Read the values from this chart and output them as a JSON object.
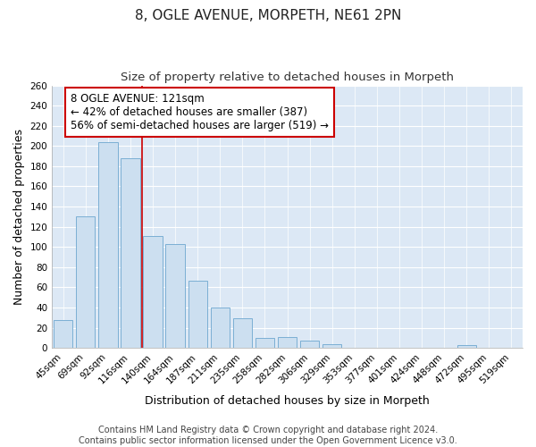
{
  "title": "8, OGLE AVENUE, MORPETH, NE61 2PN",
  "subtitle": "Size of property relative to detached houses in Morpeth",
  "xlabel": "Distribution of detached houses by size in Morpeth",
  "ylabel": "Number of detached properties",
  "bar_labels": [
    "45sqm",
    "69sqm",
    "92sqm",
    "116sqm",
    "140sqm",
    "164sqm",
    "187sqm",
    "211sqm",
    "235sqm",
    "258sqm",
    "282sqm",
    "306sqm",
    "329sqm",
    "353sqm",
    "377sqm",
    "401sqm",
    "424sqm",
    "448sqm",
    "472sqm",
    "495sqm",
    "519sqm"
  ],
  "bar_values": [
    28,
    130,
    204,
    188,
    111,
    103,
    67,
    40,
    29,
    10,
    11,
    7,
    4,
    0,
    0,
    0,
    0,
    0,
    3,
    0,
    0
  ],
  "bar_color": "#ccdff0",
  "bar_edge_color": "#7bafd4",
  "vline_color": "#cc0000",
  "vline_index": 3.5,
  "annotation_title": "8 OGLE AVENUE: 121sqm",
  "annotation_line1": "← 42% of detached houses are smaller (387)",
  "annotation_line2": "56% of semi-detached houses are larger (519) →",
  "annotation_box_color": "#ffffff",
  "annotation_box_edge": "#cc0000",
  "ylim": [
    0,
    260
  ],
  "yticks": [
    0,
    20,
    40,
    60,
    80,
    100,
    120,
    140,
    160,
    180,
    200,
    220,
    240,
    260
  ],
  "footer1": "Contains HM Land Registry data © Crown copyright and database right 2024.",
  "footer2": "Contains public sector information licensed under the Open Government Licence v3.0.",
  "title_fontsize": 11,
  "subtitle_fontsize": 9.5,
  "axis_label_fontsize": 9,
  "tick_fontsize": 7.5,
  "annotation_fontsize": 8.5,
  "footer_fontsize": 7,
  "fig_bg_color": "#ffffff",
  "plot_bg_color": "#dce8f5"
}
